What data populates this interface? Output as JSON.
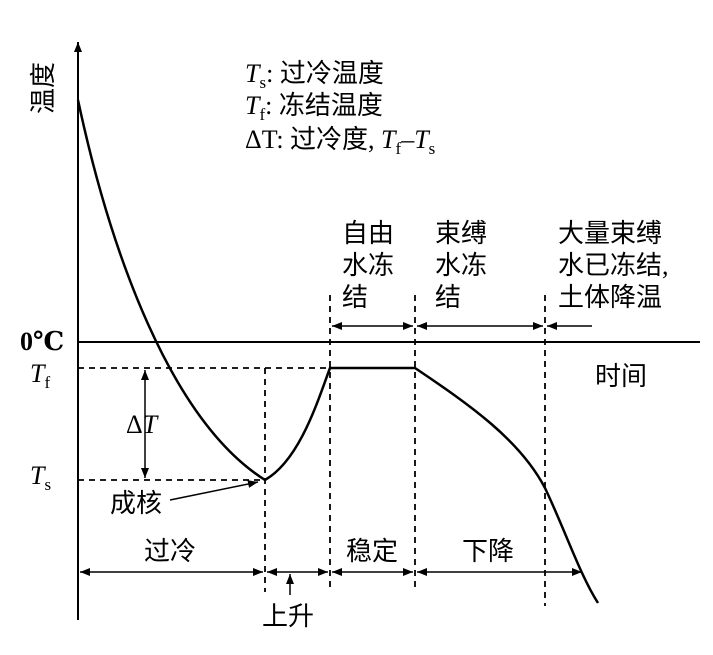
{
  "axes": {
    "y_label": "温度",
    "x_label": "时间",
    "zero_label": "0℃"
  },
  "levels": {
    "tf": {
      "symbol": "T",
      "subscript": "f"
    },
    "ts": {
      "symbol": "T",
      "subscript": "s"
    },
    "delta": {
      "symbol": "Δ",
      "variable": "T"
    }
  },
  "legend": [
    {
      "symbol": "T",
      "subscript": "s",
      "text": ": 过冷温度"
    },
    {
      "symbol": "T",
      "subscript": "f",
      "text": ": 冻结温度"
    },
    {
      "symbol": "ΔT",
      "text": ": 过冷度, ",
      "minuend": "T",
      "minuend_sub": "f",
      "minus": "–",
      "subtrahend": "T",
      "subtrahend_sub": "s"
    }
  ],
  "stages_top": [
    {
      "lines": [
        "自由",
        "水冻",
        "结"
      ]
    },
    {
      "lines": [
        "束缚",
        "水冻",
        "结"
      ]
    },
    {
      "lines": [
        "大量束缚",
        "水已冻结,",
        "土体降温"
      ]
    }
  ],
  "stages_bottom": [
    "过冷",
    "稳定",
    "下降"
  ],
  "rise_label": "上升",
  "nucleation_label": "成核"
}
